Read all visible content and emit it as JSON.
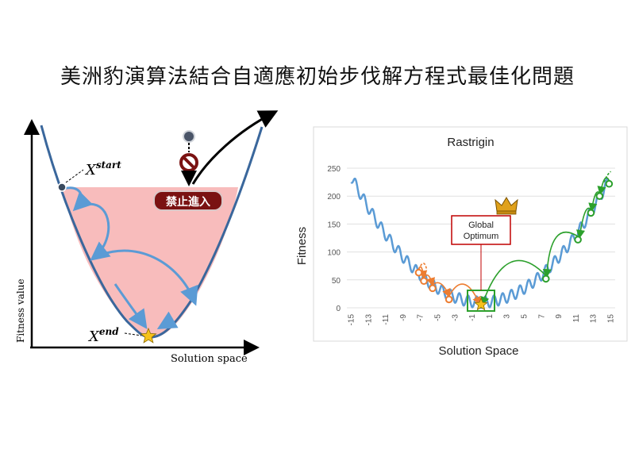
{
  "slide": {
    "title": "美洲豹演算法結合自適應初始步伐解方程式最佳化問題"
  },
  "left_diagram": {
    "y_axis_label": "Fitness value",
    "x_axis_label": "Solution space",
    "start_label": "X",
    "start_sup": "start",
    "end_label": "X",
    "end_sup": "end",
    "forbidden_label": "禁止進入",
    "colors": {
      "curve": "#3a679c",
      "region": "#f8bcbc",
      "arrows": "#5b9bd5",
      "star": "#f6c21b",
      "forbidden": "#7a1212"
    }
  },
  "chart_data": {
    "type": "line",
    "title": "Rastrigin",
    "xlabel": "Solution Space",
    "ylabel": "Fitness",
    "xlim": [
      -15.5,
      15.5
    ],
    "ylim": [
      0,
      250
    ],
    "x_ticks": [
      -15,
      -14,
      -13,
      -12,
      -11,
      -10,
      -9,
      -8,
      -7,
      -6,
      -5,
      -4,
      -3,
      -2,
      -1,
      0,
      1,
      2,
      3,
      4,
      5,
      6,
      7,
      8,
      9,
      10,
      11,
      12,
      13,
      14,
      15
    ],
    "x_tick_labels": [
      "-15",
      "-13",
      "-11",
      "-9",
      "-7",
      "-5",
      "-3",
      "-1",
      "1",
      "3",
      "5",
      "7",
      "9",
      "11",
      "13",
      "15"
    ],
    "x_tick_label_values": [
      -15,
      -13,
      -11,
      -9,
      -7,
      -5,
      -3,
      -1,
      1,
      3,
      5,
      7,
      9,
      11,
      13,
      15
    ],
    "y_ticks": [
      0,
      50,
      100,
      150,
      200,
      250
    ],
    "grid": true,
    "series": [
      {
        "function": "x^2 + 10 - 10*cos(2*pi*x)",
        "x_range": [
          -15,
          15
        ],
        "color": "#5b9bd5"
      }
    ],
    "annotation": "Global\nOptimum",
    "annotation_lines": [
      "Global",
      "Optimum"
    ],
    "orange_points": [
      [
        -7.2,
        63
      ],
      [
        -6.6,
        48
      ],
      [
        -5.6,
        35
      ],
      [
        -3.7,
        15
      ]
    ],
    "green_points": [
      [
        7.5,
        52
      ],
      [
        11.2,
        122
      ],
      [
        12.7,
        170
      ],
      [
        13.7,
        200
      ],
      [
        14.8,
        222
      ]
    ],
    "optimum": [
      0,
      0
    ],
    "colors": {
      "orange": "#ed7d31",
      "green": "#2ca02c",
      "star": "#f6c21b",
      "box": "#2ca02c",
      "label_box": "#c00000"
    }
  }
}
